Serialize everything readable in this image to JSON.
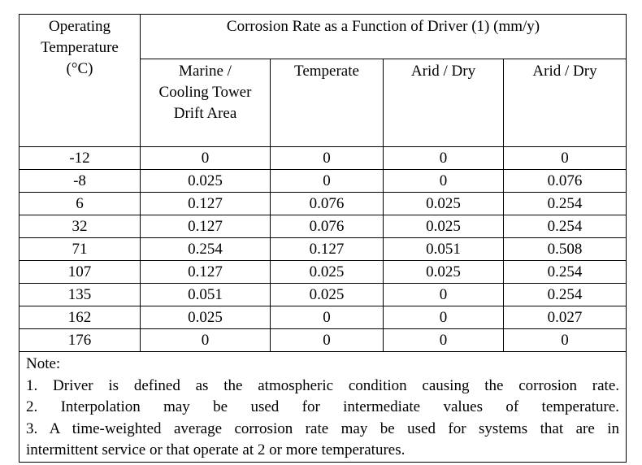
{
  "table": {
    "headers": {
      "operating_temperature": [
        "Operating",
        "Temperature",
        "(°C)"
      ],
      "group": "Corrosion Rate as a Function of Driver (1) (mm/y)",
      "columns": [
        [
          "Marine /",
          "Cooling Tower",
          "Drift Area"
        ],
        [
          "Temperate"
        ],
        [
          "Arid / Dry"
        ],
        [
          "Arid / Dry"
        ]
      ]
    },
    "rows": [
      [
        "-12",
        "0",
        "0",
        "0",
        "0"
      ],
      [
        "-8",
        "0.025",
        "0",
        "0",
        "0.076"
      ],
      [
        "6",
        "0.127",
        "0.076",
        "0.025",
        "0.254"
      ],
      [
        "32",
        "0.127",
        "0.076",
        "0.025",
        "0.254"
      ],
      [
        "71",
        "0.254",
        "0.127",
        "0.051",
        "0.508"
      ],
      [
        "107",
        "0.127",
        "0.025",
        "0.025",
        "0.254"
      ],
      [
        "135",
        "0.051",
        "0.025",
        "0",
        "0.254"
      ],
      [
        "162",
        "0.025",
        "0",
        "0",
        "0.027"
      ],
      [
        "176",
        "0",
        "0",
        "0",
        "0"
      ]
    ],
    "notes": {
      "heading": "Note:",
      "lines": [
        "1. Driver is defined as the atmospheric condition causing the corrosion rate.",
        "2. Interpolation may be used for intermediate values of temperature.",
        "3. A time-weighted average corrosion rate may be used for systems that are in",
        "intermittent service or that operate at 2 or more temperatures."
      ]
    }
  }
}
